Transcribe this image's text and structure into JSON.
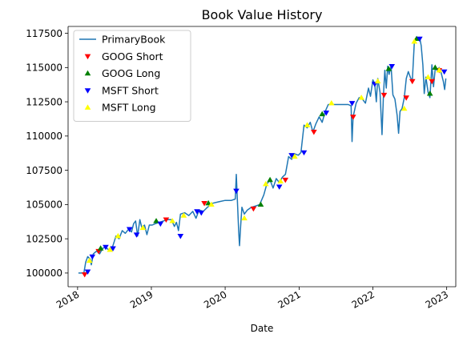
{
  "chart_data": {
    "type": "line",
    "title": "Book Value History",
    "xlabel": "Date",
    "ylabel": "",
    "xlim": [
      "2017-11-15",
      "2023-02-15"
    ],
    "ylim": [
      99000,
      118000
    ],
    "x_ticks": [
      "2018-01-01",
      "2019-01-01",
      "2020-01-01",
      "2021-01-01",
      "2022-01-01",
      "2023-01-01"
    ],
    "x_tick_labels": [
      "2018",
      "2019",
      "2020",
      "2021",
      "2022",
      "2023"
    ],
    "y_ticks": [
      100000,
      102500,
      105000,
      107500,
      110000,
      112500,
      115000,
      117500
    ],
    "y_tick_labels": [
      "100000",
      "102500",
      "105000",
      "107500",
      "110000",
      "112500",
      "115000",
      "117500"
    ],
    "grid": false,
    "legend_position": "top-left",
    "series": [
      {
        "name": "PrimaryBook",
        "kind": "line",
        "color": "#1f77b4",
        "points": [
          [
            "2018-01-05",
            100000
          ],
          [
            "2018-02-01",
            100000
          ],
          [
            "2018-02-10",
            100800
          ],
          [
            "2018-02-20",
            101200
          ],
          [
            "2018-03-05",
            101000
          ],
          [
            "2018-03-10",
            100600
          ],
          [
            "2018-03-20",
            101400
          ],
          [
            "2018-04-05",
            101600
          ],
          [
            "2018-04-20",
            101400
          ],
          [
            "2018-05-05",
            101800
          ],
          [
            "2018-05-20",
            101900
          ],
          [
            "2018-06-10",
            101600
          ],
          [
            "2018-06-25",
            102000
          ],
          [
            "2018-07-10",
            102700
          ],
          [
            "2018-07-25",
            102500
          ],
          [
            "2018-08-10",
            103100
          ],
          [
            "2018-08-25",
            102900
          ],
          [
            "2018-09-10",
            103200
          ],
          [
            "2018-09-25",
            103000
          ],
          [
            "2018-10-05",
            103600
          ],
          [
            "2018-10-15",
            103800
          ],
          [
            "2018-10-25",
            102700
          ],
          [
            "2018-11-05",
            103900
          ],
          [
            "2018-11-15",
            103300
          ],
          [
            "2018-11-28",
            103500
          ],
          [
            "2018-12-10",
            102800
          ],
          [
            "2018-12-22",
            103500
          ],
          [
            "2019-01-05",
            103500
          ],
          [
            "2019-01-20",
            103600
          ],
          [
            "2019-02-10",
            103700
          ],
          [
            "2019-03-01",
            103800
          ],
          [
            "2019-03-20",
            103900
          ],
          [
            "2019-04-10",
            103900
          ],
          [
            "2019-04-25",
            103400
          ],
          [
            "2019-05-05",
            103700
          ],
          [
            "2019-05-15",
            103100
          ],
          [
            "2019-05-25",
            104300
          ],
          [
            "2019-06-15",
            104400
          ],
          [
            "2019-07-05",
            104200
          ],
          [
            "2019-07-25",
            104500
          ],
          [
            "2019-08-10",
            104000
          ],
          [
            "2019-08-25",
            104600
          ],
          [
            "2019-09-15",
            104500
          ],
          [
            "2019-10-05",
            104800
          ],
          [
            "2019-11-01",
            105100
          ],
          [
            "2019-12-01",
            105200
          ],
          [
            "2020-01-01",
            105300
          ],
          [
            "2020-02-01",
            105300
          ],
          [
            "2020-02-20",
            105400
          ],
          [
            "2020-02-25",
            107200
          ],
          [
            "2020-03-01",
            105500
          ],
          [
            "2020-03-08",
            103000
          ],
          [
            "2020-03-12",
            102000
          ],
          [
            "2020-03-18",
            103500
          ],
          [
            "2020-03-24",
            104800
          ],
          [
            "2020-04-05",
            104300
          ],
          [
            "2020-04-20",
            104600
          ],
          [
            "2020-05-10",
            104800
          ],
          [
            "2020-06-01",
            104900
          ],
          [
            "2020-06-20",
            105000
          ],
          [
            "2020-07-10",
            105700
          ],
          [
            "2020-07-25",
            106500
          ],
          [
            "2020-08-10",
            106800
          ],
          [
            "2020-08-25",
            106200
          ],
          [
            "2020-09-10",
            106900
          ],
          [
            "2020-09-25",
            106600
          ],
          [
            "2020-10-10",
            107000
          ],
          [
            "2020-10-25",
            107200
          ],
          [
            "2020-11-10",
            108500
          ],
          [
            "2020-11-25",
            108300
          ],
          [
            "2020-12-10",
            108700
          ],
          [
            "2020-12-28",
            108600
          ],
          [
            "2021-01-10",
            108800
          ],
          [
            "2021-01-25",
            110800
          ],
          [
            "2021-02-10",
            110600
          ],
          [
            "2021-02-25",
            111000
          ],
          [
            "2021-03-10",
            110300
          ],
          [
            "2021-03-25",
            110900
          ],
          [
            "2021-04-10",
            111400
          ],
          [
            "2021-04-25",
            111000
          ],
          [
            "2021-05-10",
            111800
          ],
          [
            "2021-05-25",
            112300
          ],
          [
            "2021-07-01",
            112300
          ],
          [
            "2021-09-01",
            112300
          ],
          [
            "2021-09-15",
            112200
          ],
          [
            "2021-09-20",
            109600
          ],
          [
            "2021-09-25",
            111400
          ],
          [
            "2021-10-10",
            112400
          ],
          [
            "2021-10-25",
            112800
          ],
          [
            "2021-11-10",
            112700
          ],
          [
            "2021-11-25",
            112400
          ],
          [
            "2021-12-10",
            113500
          ],
          [
            "2021-12-20",
            112900
          ],
          [
            "2022-01-01",
            114100
          ],
          [
            "2022-01-10",
            113800
          ],
          [
            "2022-01-18",
            112500
          ],
          [
            "2022-01-25",
            114200
          ],
          [
            "2022-02-05",
            113200
          ],
          [
            "2022-02-15",
            110100
          ],
          [
            "2022-02-22",
            113000
          ],
          [
            "2022-03-01",
            114800
          ],
          [
            "2022-03-08",
            113500
          ],
          [
            "2022-03-15",
            115100
          ],
          [
            "2022-03-22",
            114500
          ],
          [
            "2022-04-01",
            115100
          ],
          [
            "2022-04-10",
            113000
          ],
          [
            "2022-04-20",
            112700
          ],
          [
            "2022-05-01",
            111500
          ],
          [
            "2022-05-08",
            110200
          ],
          [
            "2022-05-15",
            111800
          ],
          [
            "2022-05-25",
            112000
          ],
          [
            "2022-06-05",
            112800
          ],
          [
            "2022-06-15",
            114200
          ],
          [
            "2022-06-25",
            114700
          ],
          [
            "2022-07-05",
            114300
          ],
          [
            "2022-07-15",
            114000
          ],
          [
            "2022-07-25",
            116900
          ],
          [
            "2022-08-05",
            117100
          ],
          [
            "2022-08-12",
            117000
          ],
          [
            "2022-08-20",
            117200
          ],
          [
            "2022-08-28",
            116600
          ],
          [
            "2022-09-05",
            115200
          ],
          [
            "2022-09-12",
            113100
          ],
          [
            "2022-09-20",
            114300
          ],
          [
            "2022-10-01",
            113200
          ],
          [
            "2022-10-10",
            112800
          ],
          [
            "2022-10-20",
            115200
          ],
          [
            "2022-10-28",
            113600
          ],
          [
            "2022-11-05",
            114900
          ],
          [
            "2022-11-15",
            114800
          ],
          [
            "2022-11-25",
            115000
          ],
          [
            "2022-12-05",
            114600
          ],
          [
            "2022-12-15",
            114000
          ],
          [
            "2022-12-22",
            113400
          ],
          [
            "2022-12-28",
            114200
          ]
        ]
      },
      {
        "name": "GOOG Short",
        "kind": "marker",
        "marker": "triangle-down",
        "color": "#ff0000",
        "points": [
          [
            "2018-02-05",
            99900
          ],
          [
            "2018-04-15",
            101600
          ],
          [
            "2019-03-15",
            103900
          ],
          [
            "2019-09-20",
            105100
          ],
          [
            "2020-05-20",
            104700
          ],
          [
            "2020-10-25",
            106800
          ],
          [
            "2021-03-15",
            110300
          ],
          [
            "2021-09-25",
            111400
          ],
          [
            "2022-02-25",
            113000
          ],
          [
            "2022-06-15",
            112800
          ],
          [
            "2022-07-15",
            114000
          ],
          [
            "2022-10-20",
            114000
          ],
          [
            "2022-11-25",
            114800
          ]
        ]
      },
      {
        "name": "GOOG Long",
        "kind": "marker",
        "marker": "triangle-up",
        "color": "#008000",
        "points": [
          [
            "2018-04-25",
            101800
          ],
          [
            "2019-01-25",
            103800
          ],
          [
            "2019-10-10",
            105100
          ],
          [
            "2020-06-25",
            105000
          ],
          [
            "2020-08-10",
            106800
          ],
          [
            "2021-04-25",
            111600
          ],
          [
            "2022-03-20",
            114900
          ],
          [
            "2022-08-05",
            117100
          ],
          [
            "2022-10-10",
            113100
          ],
          [
            "2022-11-05",
            115000
          ]
        ]
      },
      {
        "name": "MSFT Short",
        "kind": "marker",
        "marker": "triangle-down",
        "color": "#0000ff",
        "points": [
          [
            "2018-02-20",
            100100
          ],
          [
            "2018-03-15",
            101200
          ],
          [
            "2018-05-20",
            101900
          ],
          [
            "2018-06-25",
            101800
          ],
          [
            "2018-09-15",
            103200
          ],
          [
            "2018-10-20",
            102800
          ],
          [
            "2019-02-15",
            103600
          ],
          [
            "2019-05-25",
            102700
          ],
          [
            "2019-08-15",
            104500
          ],
          [
            "2019-09-05",
            104400
          ],
          [
            "2020-02-25",
            106000
          ],
          [
            "2020-09-25",
            106300
          ],
          [
            "2020-11-25",
            108600
          ],
          [
            "2021-01-25",
            108800
          ],
          [
            "2021-05-15",
            111700
          ],
          [
            "2021-09-20",
            112400
          ],
          [
            "2022-01-10",
            113800
          ],
          [
            "2022-04-05",
            115100
          ],
          [
            "2022-08-20",
            117100
          ],
          [
            "2022-12-20",
            114700
          ]
        ]
      },
      {
        "name": "MSFT Long",
        "kind": "marker",
        "marker": "triangle-up",
        "color": "#ffff00",
        "points": [
          [
            "2018-03-01",
            100900
          ],
          [
            "2018-06-10",
            101700
          ],
          [
            "2018-07-20",
            102700
          ],
          [
            "2018-11-20",
            103300
          ],
          [
            "2019-04-15",
            103800
          ],
          [
            "2019-06-10",
            104200
          ],
          [
            "2019-10-25",
            105000
          ],
          [
            "2020-04-05",
            104000
          ],
          [
            "2020-07-20",
            106500
          ],
          [
            "2020-10-01",
            106700
          ],
          [
            "2020-12-10",
            108500
          ],
          [
            "2021-02-10",
            110800
          ],
          [
            "2021-06-10",
            112400
          ],
          [
            "2021-11-05",
            112800
          ],
          [
            "2022-01-25",
            114000
          ],
          [
            "2022-06-05",
            112000
          ],
          [
            "2022-07-25",
            116900
          ],
          [
            "2022-10-01",
            114300
          ],
          [
            "2022-11-25",
            114800
          ]
        ]
      }
    ]
  }
}
